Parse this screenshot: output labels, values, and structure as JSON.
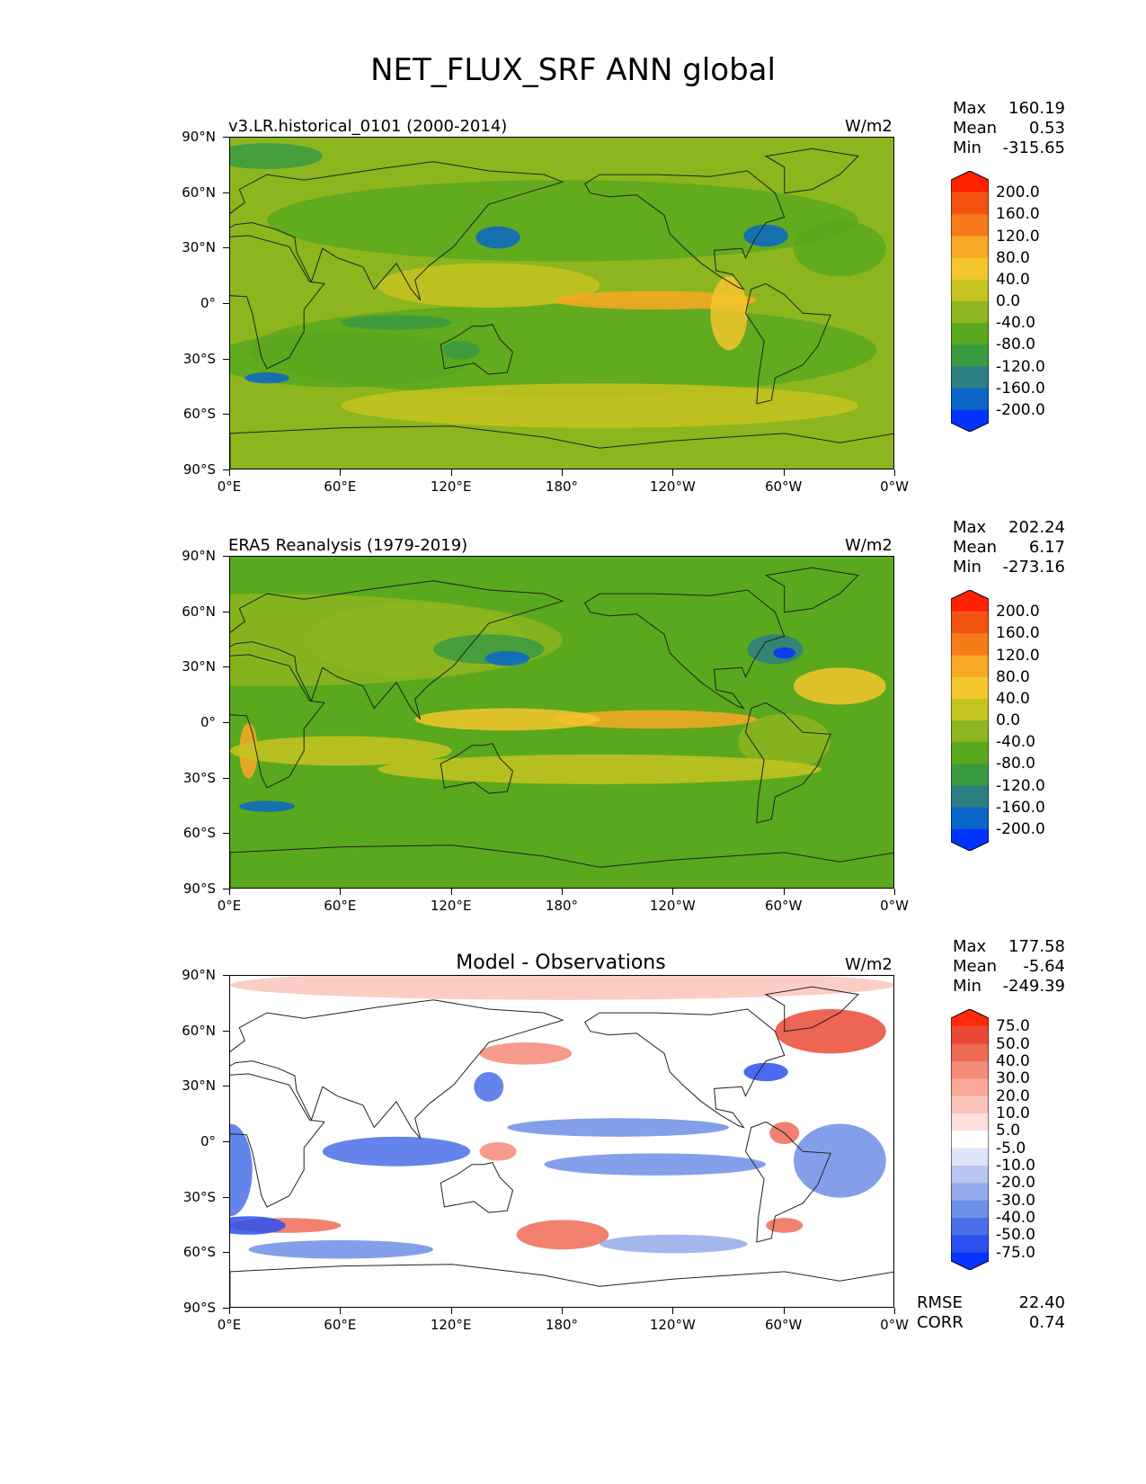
{
  "figure_title": "NET_FLUX_SRF ANN global",
  "lat_ticks": [
    "90°N",
    "60°N",
    "30°N",
    "0°",
    "30°S",
    "60°S",
    "90°S"
  ],
  "lon_ticks": [
    "0°E",
    "60°E",
    "120°E",
    "180°",
    "120°W",
    "60°W",
    "0°W"
  ],
  "colors": {
    "abs_levels": [
      "#0033ff",
      "#0a66c8",
      "#2b7f82",
      "#3a9a42",
      "#5aa81e",
      "#8cb51e",
      "#c5c320",
      "#f4c62c",
      "#f9a825",
      "#f77b18",
      "#f45210",
      "#ff2200"
    ],
    "diff_levels": [
      "#0a32ff",
      "#2a50ee",
      "#4a6ee8",
      "#6f8ee6",
      "#94aaea",
      "#b8c6f0",
      "#dde4f8",
      "#ffffff",
      "#fde0dc",
      "#fbc4bb",
      "#f9a89a",
      "#f48a78",
      "#ee6a55",
      "#ea4a35",
      "#ff2a0a"
    ]
  },
  "panels": [
    {
      "title": "v3.LR.historical_0101 (2000-2014)",
      "units": "W/m2",
      "stats": {
        "max_label": "Max",
        "max": "160.19",
        "mean_label": "Mean",
        "mean": "0.53",
        "min_label": "Min",
        "min": "-315.65"
      },
      "colorbar_labels": [
        "200.0",
        "160.0",
        "120.0",
        "80.0",
        "40.0",
        "0.0",
        "-40.0",
        "-80.0",
        "-120.0",
        "-160.0",
        "-200.0"
      ]
    },
    {
      "title": "ERA5 Reanalysis (1979-2019)",
      "units": "W/m2",
      "stats": {
        "max_label": "Max",
        "max": "202.24",
        "mean_label": "Mean",
        "mean": "6.17",
        "min_label": "Min",
        "min": "-273.16"
      },
      "colorbar_labels": [
        "200.0",
        "160.0",
        "120.0",
        "80.0",
        "40.0",
        "0.0",
        "-40.0",
        "-80.0",
        "-120.0",
        "-160.0",
        "-200.0"
      ]
    },
    {
      "title": "Model - Observations",
      "units": "W/m2",
      "stats": {
        "max_label": "Max",
        "max": "177.58",
        "mean_label": "Mean",
        "mean": "-5.64",
        "min_label": "Min",
        "min": "-249.39"
      },
      "colorbar_labels": [
        "75.0",
        "50.0",
        "40.0",
        "30.0",
        "20.0",
        "10.0",
        "5.0",
        "-5.0",
        "-10.0",
        "-20.0",
        "-30.0",
        "-40.0",
        "-50.0",
        "-75.0"
      ],
      "metrics": {
        "rmse_label": "RMSE",
        "rmse": "22.40",
        "corr_label": "CORR",
        "corr": "0.74"
      }
    }
  ],
  "chart_data": [
    {
      "type": "heatmap",
      "title": "v3.LR.historical_0101 (2000-2014)",
      "units": "W/m2",
      "x_ticks": [
        "0°E",
        "60°E",
        "120°E",
        "180°",
        "120°W",
        "60°W",
        "0°W"
      ],
      "y_ticks": [
        "90°N",
        "60°N",
        "30°N",
        "0°",
        "30°S",
        "60°S",
        "90°S"
      ],
      "colorbar": [
        200.0,
        160.0,
        120.0,
        80.0,
        40.0,
        0.0,
        -40.0,
        -80.0,
        -120.0,
        -160.0,
        -200.0
      ],
      "max": 160.19,
      "mean": 0.53,
      "min": -315.65
    },
    {
      "type": "heatmap",
      "title": "ERA5 Reanalysis (1979-2019)",
      "units": "W/m2",
      "x_ticks": [
        "0°E",
        "60°E",
        "120°E",
        "180°",
        "120°W",
        "60°W",
        "0°W"
      ],
      "y_ticks": [
        "90°N",
        "60°N",
        "30°N",
        "0°",
        "30°S",
        "60°S",
        "90°S"
      ],
      "colorbar": [
        200.0,
        160.0,
        120.0,
        80.0,
        40.0,
        0.0,
        -40.0,
        -80.0,
        -120.0,
        -160.0,
        -200.0
      ],
      "max": 202.24,
      "mean": 6.17,
      "min": -273.16
    },
    {
      "type": "heatmap",
      "title": "Model - Observations",
      "units": "W/m2",
      "x_ticks": [
        "0°E",
        "60°E",
        "120°E",
        "180°",
        "120°W",
        "60°W",
        "0°W"
      ],
      "y_ticks": [
        "90°N",
        "60°N",
        "30°N",
        "0°",
        "30°S",
        "60°S",
        "90°S"
      ],
      "colorbar": [
        75.0,
        50.0,
        40.0,
        30.0,
        20.0,
        10.0,
        5.0,
        -5.0,
        -10.0,
        -20.0,
        -30.0,
        -40.0,
        -50.0,
        -75.0
      ],
      "max": 177.58,
      "mean": -5.64,
      "min": -249.39,
      "rmse": 22.4,
      "corr": 0.74
    }
  ]
}
